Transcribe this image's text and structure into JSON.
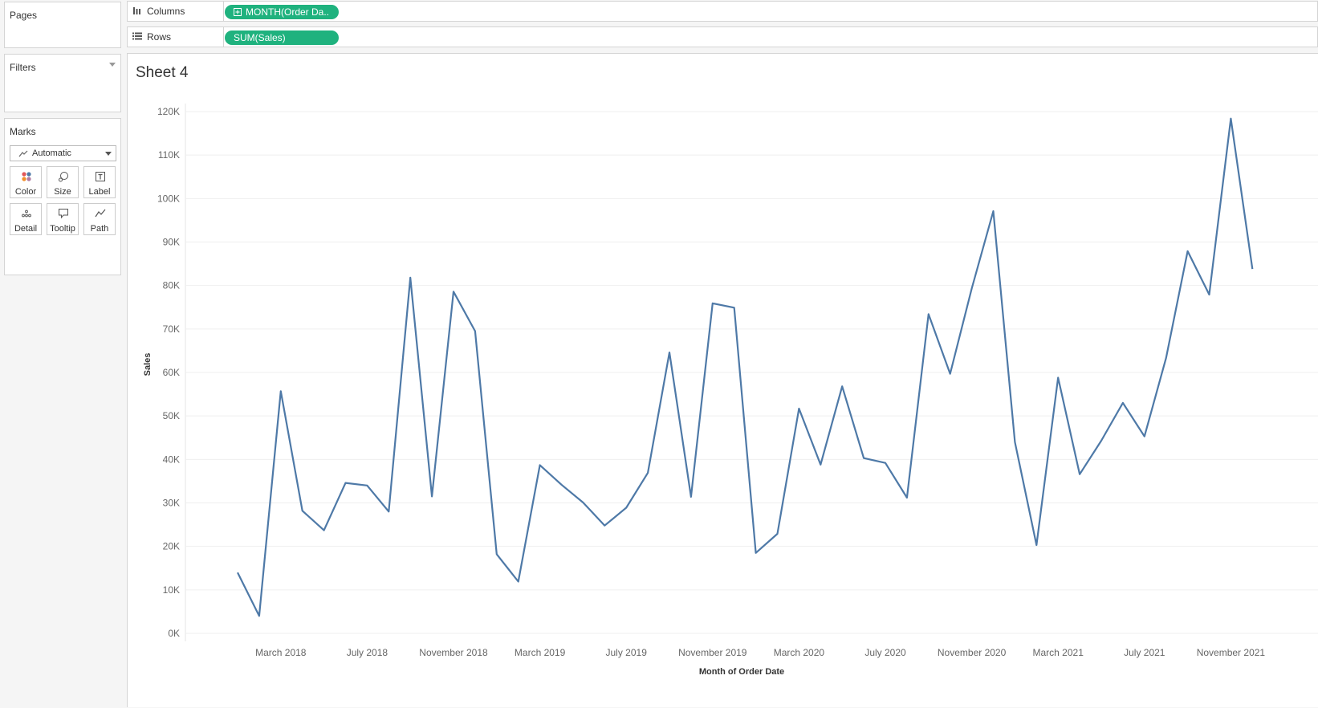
{
  "left_panel": {
    "pages_title": "Pages",
    "filters_title": "Filters",
    "marks_title": "Marks",
    "mark_type": "Automatic",
    "mark_buttons": [
      {
        "label": "Color",
        "icon": "color-icon"
      },
      {
        "label": "Size",
        "icon": "size-icon"
      },
      {
        "label": "Label",
        "icon": "label-icon"
      },
      {
        "label": "Detail",
        "icon": "detail-icon"
      },
      {
        "label": "Tooltip",
        "icon": "tooltip-icon"
      },
      {
        "label": "Path",
        "icon": "path-icon"
      }
    ]
  },
  "shelves": {
    "columns_label": "Columns",
    "columns_pill": "MONTH(Order Da..",
    "rows_label": "Rows",
    "rows_pill": "SUM(Sales)",
    "pill_color": "#1fb27e"
  },
  "sheet_title": "Sheet 4",
  "chart_data": {
    "type": "line",
    "line_color": "#4e79a7",
    "xlabel": "Month of Order Date",
    "ylabel": "Sales",
    "ylim": [
      0,
      120000
    ],
    "yticks": [
      "0K",
      "10K",
      "20K",
      "30K",
      "40K",
      "50K",
      "60K",
      "70K",
      "80K",
      "90K",
      "100K",
      "110K",
      "120K"
    ],
    "xticks": [
      "March 2018",
      "July 2018",
      "November 2018",
      "March 2019",
      "July 2019",
      "November 2019",
      "March 2020",
      "July 2020",
      "November 2020",
      "March 2021",
      "July 2021",
      "November 2021"
    ],
    "grid": true,
    "x": [
      "2018-01",
      "2018-02",
      "2018-03",
      "2018-04",
      "2018-05",
      "2018-06",
      "2018-07",
      "2018-08",
      "2018-09",
      "2018-10",
      "2018-11",
      "2018-12",
      "2019-01",
      "2019-02",
      "2019-03",
      "2019-04",
      "2019-05",
      "2019-06",
      "2019-07",
      "2019-08",
      "2019-09",
      "2019-10",
      "2019-11",
      "2019-12",
      "2020-01",
      "2020-02",
      "2020-03",
      "2020-04",
      "2020-05",
      "2020-06",
      "2020-07",
      "2020-08",
      "2020-09",
      "2020-10",
      "2020-11",
      "2020-12",
      "2021-01",
      "2021-02",
      "2021-03",
      "2021-04",
      "2021-05",
      "2021-06",
      "2021-07",
      "2021-08",
      "2021-09",
      "2021-10",
      "2021-11",
      "2021-12"
    ],
    "values": [
      14000,
      4000,
      55700,
      28200,
      23700,
      34600,
      34000,
      28000,
      81800,
      31500,
      78600,
      69500,
      18200,
      11900,
      38700,
      34200,
      30100,
      24800,
      28900,
      36900,
      64600,
      31400,
      75900,
      74900,
      18500,
      22900,
      51700,
      38800,
      56800,
      40300,
      39200,
      31200,
      73400,
      59700,
      79300,
      97100,
      44000,
      20300,
      58800,
      36600,
      44300,
      53000,
      45300,
      63300,
      87900,
      77900,
      118400,
      83800
    ]
  }
}
